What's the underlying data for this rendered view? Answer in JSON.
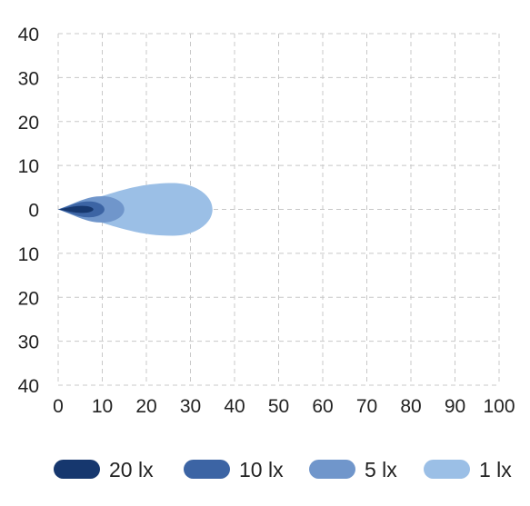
{
  "chart_data": {
    "type": "area",
    "title": "",
    "xlabel": "",
    "ylabel": "",
    "xlim": [
      0,
      100
    ],
    "ylim": [
      -40,
      40
    ],
    "grid": true,
    "grid_style": "dashed",
    "legend_placement": "bottom",
    "x_ticks": [
      0,
      10,
      20,
      30,
      40,
      50,
      60,
      70,
      80,
      90,
      100
    ],
    "x_tick_labels": [
      "0",
      "10",
      "20",
      "30",
      "40",
      "50",
      "60",
      "70",
      "80",
      "90",
      "100"
    ],
    "y_ticks": [
      40,
      30,
      20,
      10,
      0,
      -10,
      -20,
      -30,
      -40
    ],
    "y_tick_labels": [
      "40",
      "30",
      "20",
      "10",
      "0",
      "10",
      "20",
      "30",
      "40"
    ],
    "series": [
      {
        "name": "1 lx",
        "color": "#9bbfe6",
        "reach": 35,
        "max_half_width": 6.0,
        "max_at": 26
      },
      {
        "name": "5 lx",
        "color": "#7096cb",
        "reach": 15,
        "max_half_width": 3.0,
        "max_at": 10
      },
      {
        "name": "10 lx",
        "color": "#3c64a4",
        "reach": 10.5,
        "max_half_width": 1.8,
        "max_at": 7
      },
      {
        "name": "20 lx",
        "color": "#16376e",
        "reach": 8,
        "max_half_width": 0.8,
        "max_at": 5.5
      }
    ],
    "legend": [
      {
        "label": "20 lx",
        "color": "#16376e"
      },
      {
        "label": "10 lx",
        "color": "#3c64a4"
      },
      {
        "label": "5 lx",
        "color": "#7096cb"
      },
      {
        "label": "1 lx",
        "color": "#9bbfe6"
      }
    ]
  }
}
